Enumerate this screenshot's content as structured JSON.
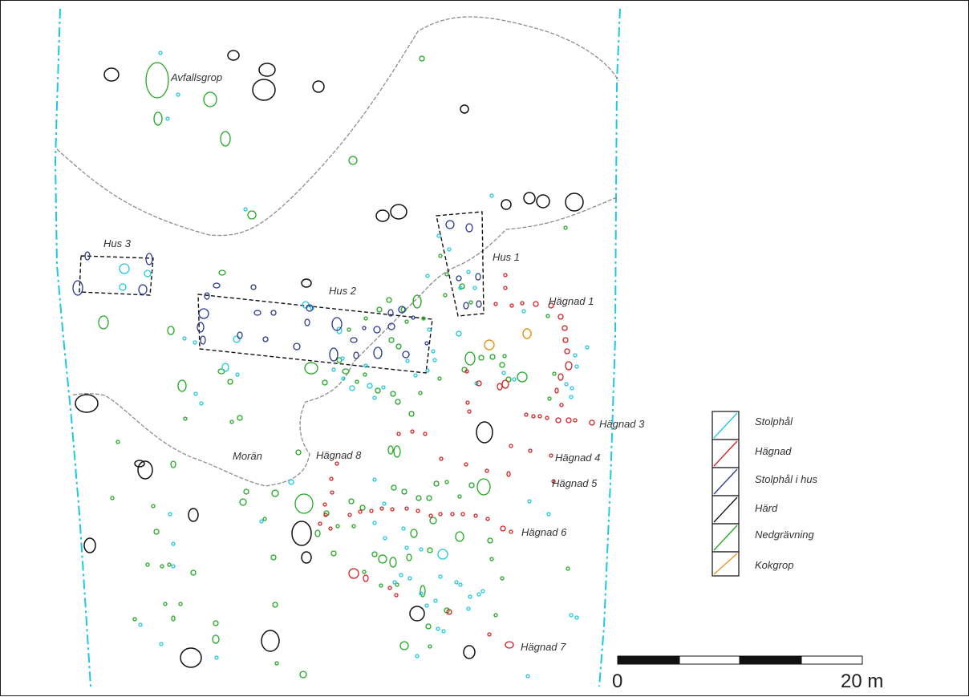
{
  "colors": {
    "stolphal": "#1ec8e0",
    "hagnad": "#d42020",
    "stolphal_i_hus": "#2a3a8c",
    "hard": "#111111",
    "nedgravning": "#22a822",
    "kokgrop": "#e8941a",
    "boundary": "#1ec8e0",
    "moran": "#8c8c8c"
  },
  "labels": {
    "avfallsgrop": "Avfallsgrop",
    "hus3": "Hus 3",
    "hus2": "Hus 2",
    "hus1": "Hus 1",
    "hagnad1": "Hägnad 1",
    "hagnad3": "Hägnad 3",
    "hagnad4": "Hägnad 4",
    "hagnad5": "Hägnad 5",
    "hagnad6": "Hägnad 6",
    "hagnad7": "Hägnad 7",
    "hagnad8": "Hägnad 8",
    "moran": "Morän"
  },
  "legend": [
    {
      "label": "Stolphål",
      "icon": "diagonal-line",
      "color": "#1ec8e0"
    },
    {
      "label": "Hägnad",
      "icon": "diagonal-line",
      "color": "#d42020"
    },
    {
      "label": "Stolphål i hus",
      "icon": "diagonal-line",
      "color": "#2a3a8c"
    },
    {
      "label": "Härd",
      "icon": "diagonal-line",
      "color": "#111111"
    },
    {
      "label": "Nedgrävning",
      "icon": "diagonal-line",
      "color": "#22a822"
    },
    {
      "label": "Kokgrop",
      "icon": "diagonal-line",
      "color": "#e8941a"
    }
  ],
  "scale": {
    "start_label": "0",
    "end_label": "20 m"
  }
}
